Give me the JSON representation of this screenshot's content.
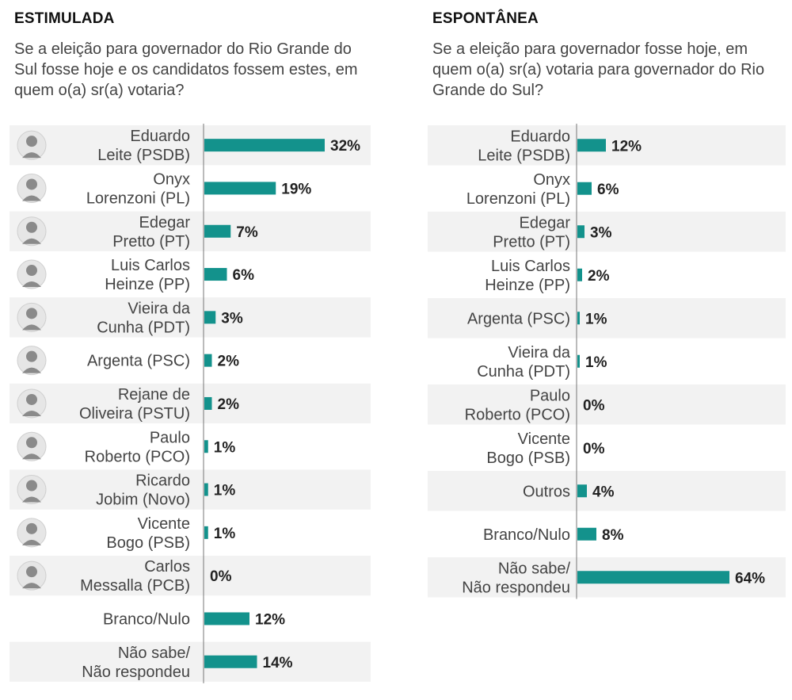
{
  "panels": [
    {
      "title": "ESTIMULADA",
      "question": "Se a eleição para governador do Rio Grande do Sul fosse hoje e os candidatos fossem estes, em quem o(a) sr(a) votaria?"
    },
    {
      "title": "ESPONTÂNEA",
      "question": "Se a eleição para governador fosse hoje, em quem o(a) sr(a) votaria para governador do Rio Grande do Sul?"
    }
  ],
  "chart_data": [
    {
      "type": "bar",
      "orientation": "horizontal",
      "title": "ESTIMULADA",
      "value_suffix": "%",
      "xlim": [
        0,
        32
      ],
      "categories": [
        [
          "Eduardo",
          "Leite (PSDB)"
        ],
        [
          "Onyx",
          "Lorenzoni (PL)"
        ],
        [
          "Edegar",
          "Pretto (PT)"
        ],
        [
          "Luis Carlos",
          "Heinze (PP)"
        ],
        [
          "Vieira da",
          "Cunha (PDT)"
        ],
        [
          "Argenta (PSC)"
        ],
        [
          "Rejane de",
          "Oliveira (PSTU)"
        ],
        [
          "Paulo",
          "Roberto (PCO)"
        ],
        [
          "Ricardo",
          "Jobim (Novo)"
        ],
        [
          "Vicente",
          "Bogo (PSB)"
        ],
        [
          "Carlos",
          "Messalla (PCB)"
        ],
        [
          "Branco/Nulo"
        ],
        [
          "Não sabe/",
          "Não respondeu"
        ]
      ],
      "values": [
        32,
        19,
        7,
        6,
        3,
        2,
        2,
        1,
        1,
        1,
        0,
        12,
        14
      ],
      "photo": [
        true,
        true,
        true,
        true,
        true,
        true,
        true,
        true,
        true,
        true,
        true,
        false,
        false
      ],
      "colors": {
        "bar": "#13928c",
        "row_shade": "#f2f2f2"
      }
    },
    {
      "type": "bar",
      "orientation": "horizontal",
      "title": "ESPONTÂNEA",
      "value_suffix": "%",
      "xlim": [
        0,
        64
      ],
      "categories": [
        [
          "Eduardo",
          "Leite (PSDB)"
        ],
        [
          "Onyx",
          "Lorenzoni (PL)"
        ],
        [
          "Edegar",
          "Pretto (PT)"
        ],
        [
          "Luis Carlos",
          "Heinze (PP)"
        ],
        [
          "Argenta (PSC)"
        ],
        [
          "Vieira da",
          "Cunha (PDT)"
        ],
        [
          "Paulo",
          "Roberto (PCO)"
        ],
        [
          "Vicente",
          "Bogo (PSB)"
        ],
        [
          "Outros"
        ],
        [
          "Branco/Nulo"
        ],
        [
          "Não sabe/",
          "Não respondeu"
        ]
      ],
      "values": [
        12,
        6,
        3,
        2,
        1,
        1,
        0,
        0,
        4,
        8,
        64
      ],
      "photo": [
        false,
        false,
        false,
        false,
        false,
        false,
        false,
        false,
        false,
        false,
        false
      ],
      "colors": {
        "bar": "#13928c",
        "row_shade": "#f2f2f2"
      }
    }
  ]
}
